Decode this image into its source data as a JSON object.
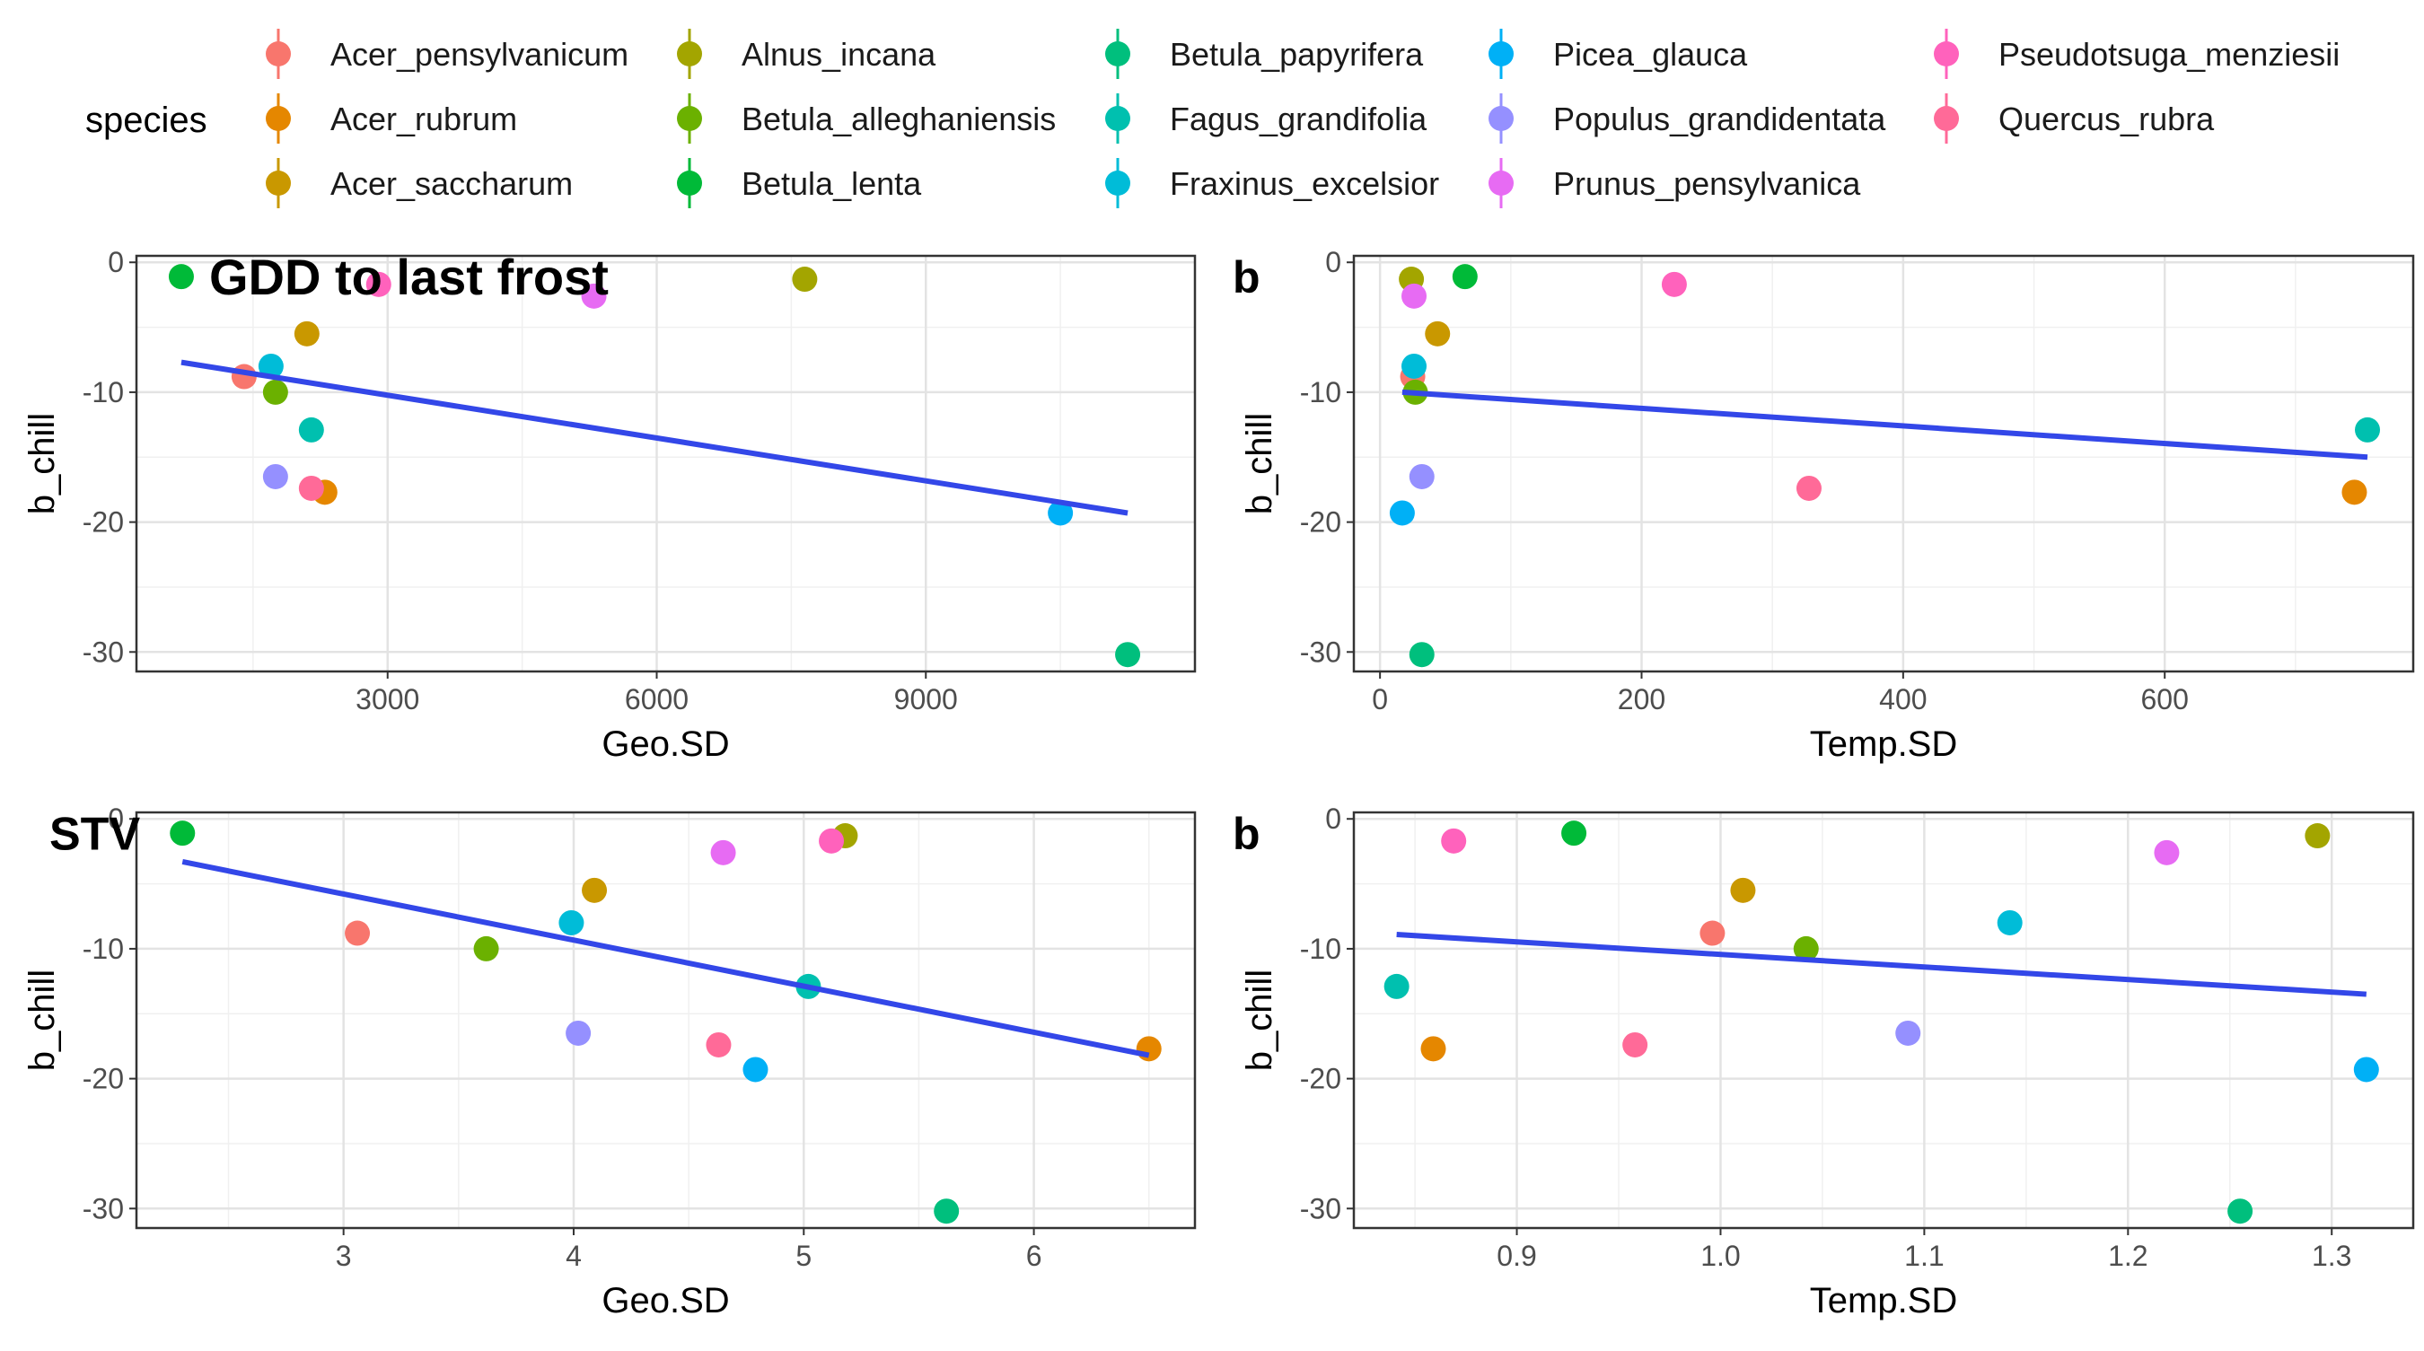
{
  "legend": {
    "title": "species",
    "position": "top",
    "items": [
      {
        "name": "Acer_pensylvanicum",
        "color": "#F8766D"
      },
      {
        "name": "Acer_rubrum",
        "color": "#E58700"
      },
      {
        "name": "Acer_saccharum",
        "color": "#C99800"
      },
      {
        "name": "Alnus_incana",
        "color": "#A3A500"
      },
      {
        "name": "Betula_alleghaniensis",
        "color": "#6BB100"
      },
      {
        "name": "Betula_lenta",
        "color": "#00BA38"
      },
      {
        "name": "Betula_papyrifera",
        "color": "#00BF7D"
      },
      {
        "name": "Fagus_grandifolia",
        "color": "#00C0AF"
      },
      {
        "name": "Fraxinus_excelsior",
        "color": "#00BCD8"
      },
      {
        "name": "Picea_glauca",
        "color": "#00B0F6"
      },
      {
        "name": "Populus_grandidentata",
        "color": "#9590FF"
      },
      {
        "name": "Prunus_pensylvanica",
        "color": "#E76BF3"
      },
      {
        "name": "Pseudotsuga_menziesii",
        "color": "#FF62BC"
      },
      {
        "name": "Quercus_rubra",
        "color": "#FF6A98"
      }
    ]
  },
  "chart_data": [
    {
      "type": "scatter",
      "title": "GDD to last frost",
      "xlabel": "Geo.SD",
      "ylabel": "b_chill",
      "xlim": [
        200,
        12000
      ],
      "ylim": [
        -31.5,
        0.5
      ],
      "xticks": [
        3000,
        6000,
        9000
      ],
      "xtick_labels": [
        "3000",
        "6000",
        "9000"
      ],
      "yticks": [
        0,
        -10,
        -20,
        -30
      ],
      "ytick_labels": [
        "0",
        "-10",
        "-20",
        "-30"
      ],
      "grid": true,
      "points": [
        {
          "species": "Acer_pensylvanicum",
          "x": 1400,
          "y": -8.8
        },
        {
          "species": "Acer_rubrum",
          "x": 2300,
          "y": -17.7
        },
        {
          "species": "Acer_saccharum",
          "x": 2100,
          "y": -5.5
        },
        {
          "species": "Alnus_incana",
          "x": 7650,
          "y": -1.3
        },
        {
          "species": "Betula_alleghaniensis",
          "x": 1750,
          "y": -10.0
        },
        {
          "species": "Betula_lenta",
          "x": 700,
          "y": -1.1
        },
        {
          "species": "Betula_papyrifera",
          "x": 11250,
          "y": -30.2
        },
        {
          "species": "Fagus_grandifolia",
          "x": 2150,
          "y": -12.9
        },
        {
          "species": "Fraxinus_excelsior",
          "x": 1700,
          "y": -8.0
        },
        {
          "species": "Picea_glauca",
          "x": 10500,
          "y": -19.3
        },
        {
          "species": "Populus_grandidentata",
          "x": 1750,
          "y": -16.5
        },
        {
          "species": "Prunus_pensylvanica",
          "x": 5300,
          "y": -2.6
        },
        {
          "species": "Pseudotsuga_menziesii",
          "x": 2900,
          "y": -1.7
        },
        {
          "species": "Quercus_rubra",
          "x": 2150,
          "y": -17.4
        }
      ],
      "fit": {
        "x": [
          700,
          11250
        ],
        "y": [
          -7.7,
          -19.3
        ]
      }
    },
    {
      "type": "scatter",
      "title": "b",
      "xlabel": "Temp.SD",
      "ylabel": "b_chill",
      "xlim": [
        -20,
        790
      ],
      "ylim": [
        -31.5,
        0.5
      ],
      "xticks": [
        0,
        200,
        400,
        600
      ],
      "xtick_labels": [
        "0",
        "200",
        "400",
        "600"
      ],
      "yticks": [
        0,
        -10,
        -20,
        -30
      ],
      "ytick_labels": [
        "0",
        "-10",
        "-20",
        "-30"
      ],
      "grid": true,
      "points": [
        {
          "species": "Acer_pensylvanicum",
          "x": 25,
          "y": -8.8
        },
        {
          "species": "Acer_rubrum",
          "x": 745,
          "y": -17.7
        },
        {
          "species": "Acer_saccharum",
          "x": 44,
          "y": -5.5
        },
        {
          "species": "Alnus_incana",
          "x": 24,
          "y": -1.3
        },
        {
          "species": "Betula_alleghaniensis",
          "x": 27,
          "y": -10.0
        },
        {
          "species": "Betula_lenta",
          "x": 65,
          "y": -1.1
        },
        {
          "species": "Betula_papyrifera",
          "x": 32,
          "y": -30.2
        },
        {
          "species": "Fagus_grandifolia",
          "x": 755,
          "y": -12.9
        },
        {
          "species": "Fraxinus_excelsior",
          "x": 26,
          "y": -8.0
        },
        {
          "species": "Picea_glauca",
          "x": 17,
          "y": -19.3
        },
        {
          "species": "Populus_grandidentata",
          "x": 32,
          "y": -16.5
        },
        {
          "species": "Prunus_pensylvanica",
          "x": 26,
          "y": -2.6
        },
        {
          "species": "Pseudotsuga_menziesii",
          "x": 225,
          "y": -1.7
        },
        {
          "species": "Quercus_rubra",
          "x": 328,
          "y": -17.4
        }
      ],
      "fit": {
        "x": [
          17,
          755
        ],
        "y": [
          -10.0,
          -15.0
        ]
      }
    },
    {
      "type": "scatter",
      "title": "STV",
      "xlabel": "Geo.SD",
      "ylabel": "b_chill",
      "xlim": [
        2.1,
        6.7
      ],
      "ylim": [
        -31.5,
        0.5
      ],
      "xticks": [
        3,
        4,
        5,
        6
      ],
      "xtick_labels": [
        "3",
        "4",
        "5",
        "6"
      ],
      "yticks": [
        0,
        -10,
        -20,
        -30
      ],
      "ytick_labels": [
        "0",
        "-10",
        "-20",
        "-30"
      ],
      "grid": true,
      "points": [
        {
          "species": "Acer_pensylvanicum",
          "x": 3.06,
          "y": -8.8
        },
        {
          "species": "Acer_rubrum",
          "x": 6.5,
          "y": -17.7
        },
        {
          "species": "Acer_saccharum",
          "x": 4.09,
          "y": -5.5
        },
        {
          "species": "Alnus_incana",
          "x": 5.18,
          "y": -1.3
        },
        {
          "species": "Betula_alleghaniensis",
          "x": 3.62,
          "y": -10.0
        },
        {
          "species": "Betula_lenta",
          "x": 2.3,
          "y": -1.1
        },
        {
          "species": "Betula_papyrifera",
          "x": 5.62,
          "y": -30.2
        },
        {
          "species": "Fagus_grandifolia",
          "x": 5.02,
          "y": -12.9
        },
        {
          "species": "Fraxinus_excelsior",
          "x": 3.99,
          "y": -8.0
        },
        {
          "species": "Picea_glauca",
          "x": 4.79,
          "y": -19.3
        },
        {
          "species": "Populus_grandidentata",
          "x": 4.02,
          "y": -16.5
        },
        {
          "species": "Prunus_pensylvanica",
          "x": 4.65,
          "y": -2.6
        },
        {
          "species": "Pseudotsuga_menziesii",
          "x": 5.12,
          "y": -1.7
        },
        {
          "species": "Quercus_rubra",
          "x": 4.63,
          "y": -17.4
        }
      ],
      "fit": {
        "x": [
          2.3,
          6.5
        ],
        "y": [
          -3.3,
          -18.2
        ]
      }
    },
    {
      "type": "scatter",
      "title": "b",
      "xlabel": "Temp.SD",
      "ylabel": "b_chill",
      "xlim": [
        0.82,
        1.34
      ],
      "ylim": [
        -31.5,
        0.5
      ],
      "xticks": [
        0.9,
        1.0,
        1.1,
        1.2,
        1.3
      ],
      "xtick_labels": [
        "0.9",
        "1.0",
        "1.1",
        "1.2",
        "1.3"
      ],
      "yticks": [
        0,
        -10,
        -20,
        -30
      ],
      "ytick_labels": [
        "0",
        "-10",
        "-20",
        "-30"
      ],
      "grid": true,
      "points": [
        {
          "species": "Acer_pensylvanicum",
          "x": 0.996,
          "y": -8.8
        },
        {
          "species": "Acer_rubrum",
          "x": 0.859,
          "y": -17.7
        },
        {
          "species": "Acer_saccharum",
          "x": 1.011,
          "y": -5.5
        },
        {
          "species": "Alnus_incana",
          "x": 1.293,
          "y": -1.3
        },
        {
          "species": "Betula_alleghaniensis",
          "x": 1.042,
          "y": -10.0
        },
        {
          "species": "Betula_lenta",
          "x": 0.928,
          "y": -1.1
        },
        {
          "species": "Betula_papyrifera",
          "x": 1.255,
          "y": -30.2
        },
        {
          "species": "Fagus_grandifolia",
          "x": 0.841,
          "y": -12.9
        },
        {
          "species": "Fraxinus_excelsior",
          "x": 1.142,
          "y": -8.0
        },
        {
          "species": "Picea_glauca",
          "x": 1.317,
          "y": -19.3
        },
        {
          "species": "Populus_grandidentata",
          "x": 1.092,
          "y": -16.5
        },
        {
          "species": "Prunus_pensylvanica",
          "x": 1.219,
          "y": -2.6
        },
        {
          "species": "Pseudotsuga_menziesii",
          "x": 0.869,
          "y": -1.7
        },
        {
          "species": "Quercus_rubra",
          "x": 0.958,
          "y": -17.4
        }
      ],
      "fit": {
        "x": [
          0.841,
          1.317
        ],
        "y": [
          -8.9,
          -13.5
        ]
      }
    }
  ]
}
